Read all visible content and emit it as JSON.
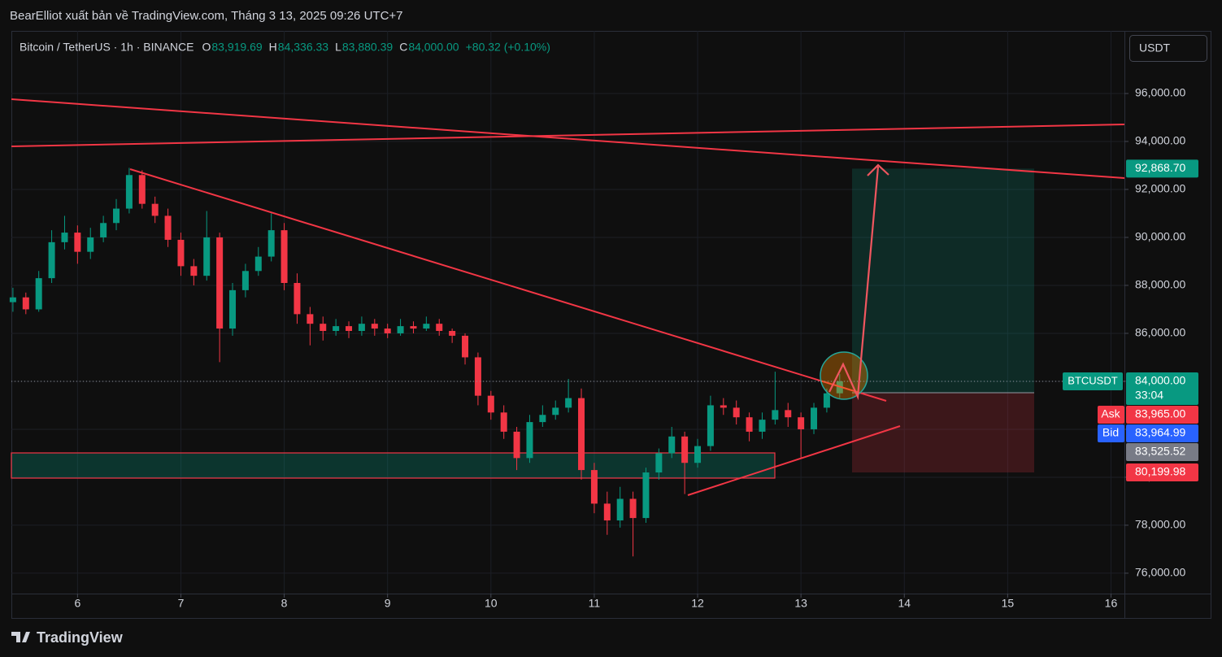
{
  "publisher": "BearElliot xuất bản về TradingView.com, Tháng 3 13, 2025 09:26 UTC+7",
  "symbol": "Bitcoin / TetherUS · 1h · BINANCE",
  "ohlc": [
    {
      "key": "O",
      "value": "83,919.69"
    },
    {
      "key": "H",
      "value": "84,336.33"
    },
    {
      "key": "L",
      "value": "83,880.39"
    },
    {
      "key": "C",
      "value": "84,000.00"
    }
  ],
  "change": "+80.32 (+0.10%)",
  "currency_button": "USDT",
  "footer": "TradingView",
  "chart_data": {
    "type": "candlestick",
    "x": [
      5.375,
      5.5,
      5.625,
      5.75,
      5.875,
      6,
      6.125,
      6.25,
      6.375,
      6.5,
      6.625,
      6.75,
      6.875,
      7,
      7.125,
      7.25,
      7.375,
      7.5,
      7.625,
      7.75,
      7.875,
      8,
      8.125,
      8.25,
      8.375,
      8.5,
      8.625,
      8.75,
      8.875,
      9,
      9.125,
      9.25,
      9.375,
      9.5,
      9.625,
      9.75,
      9.875,
      10,
      10.125,
      10.25,
      10.375,
      10.5,
      10.625,
      10.75,
      10.875,
      11,
      11.125,
      11.25,
      11.375,
      11.5,
      11.625,
      11.75,
      11.875,
      12,
      12.125,
      12.25,
      12.375,
      12.5,
      12.625,
      12.75,
      12.875,
      13,
      13.125,
      13.25,
      13.375
    ],
    "open": [
      87300,
      87500,
      87000,
      88300,
      89800,
      90200,
      89400,
      90000,
      90600,
      91200,
      92600,
      91400,
      90900,
      89900,
      88800,
      88400,
      90000,
      86200,
      87800,
      88600,
      89200,
      90300,
      88100,
      86800,
      86400,
      86100,
      86300,
      86100,
      86400,
      86200,
      86000,
      86300,
      86200,
      86400,
      86100,
      85900,
      85000,
      83400,
      82700,
      81900,
      80800,
      82300,
      82600,
      82900,
      83300,
      80300,
      78900,
      78200,
      79100,
      78300,
      80200,
      81000,
      81700,
      80600,
      81300,
      83000,
      82900,
      82500,
      81900,
      82400,
      82800,
      82500,
      82000,
      82900,
      83500
    ],
    "high": [
      87900,
      87700,
      88600,
      90300,
      90900,
      90500,
      90400,
      90900,
      91600,
      92900,
      92800,
      91700,
      91200,
      90200,
      89100,
      91100,
      90200,
      88100,
      88900,
      89600,
      91000,
      90600,
      88500,
      87100,
      86700,
      86600,
      86500,
      86700,
      86600,
      86400,
      86600,
      86500,
      86700,
      86600,
      86200,
      86000,
      85200,
      83600,
      83000,
      82100,
      82600,
      83000,
      83200,
      84100,
      83700,
      80600,
      79400,
      79600,
      79400,
      80400,
      81200,
      82100,
      81900,
      81600,
      83400,
      83300,
      83200,
      82700,
      82700,
      84400,
      83100,
      82700,
      83100,
      83700,
      84300
    ],
    "low": [
      86900,
      86800,
      86900,
      88100,
      89500,
      88900,
      89100,
      89800,
      90300,
      91000,
      91200,
      90600,
      89600,
      88400,
      88000,
      88200,
      84800,
      85900,
      87500,
      88400,
      89000,
      87800,
      86400,
      85500,
      85700,
      85900,
      85800,
      85900,
      85900,
      85800,
      85900,
      86000,
      86100,
      85900,
      85600,
      84700,
      83000,
      82400,
      81600,
      80300,
      80600,
      82100,
      82400,
      82700,
      79900,
      78500,
      77600,
      77900,
      76700,
      78100,
      79900,
      80800,
      79300,
      80400,
      81100,
      82600,
      82200,
      81500,
      81600,
      82200,
      82100,
      80800,
      81800,
      82700,
      83300
    ],
    "close": [
      87500,
      87000,
      88300,
      89800,
      90200,
      89400,
      90000,
      90600,
      91200,
      92600,
      91400,
      90900,
      89900,
      88800,
      88400,
      90000,
      86200,
      87800,
      88600,
      89200,
      90300,
      88100,
      86800,
      86400,
      86100,
      86300,
      86100,
      86400,
      86200,
      86000,
      86300,
      86200,
      86400,
      86100,
      85900,
      85000,
      83400,
      82700,
      81900,
      80800,
      82300,
      82600,
      82900,
      83300,
      80300,
      78900,
      78200,
      79100,
      78300,
      80200,
      81000,
      81700,
      80600,
      81300,
      83000,
      82900,
      82500,
      81900,
      82400,
      82800,
      82500,
      82000,
      82900,
      83500,
      84000
    ],
    "up_color": "#089981",
    "down_color": "#f23645",
    "xlim": [
      5.36,
      16.13
    ],
    "xticks": [
      6,
      7,
      8,
      9,
      10,
      11,
      12,
      13,
      14,
      15,
      16
    ],
    "ylim": [
      75150,
      98610
    ],
    "yticks": [
      {
        "value": 76000,
        "label": "76,000.00"
      },
      {
        "value": 78000,
        "label": "78,000.00"
      },
      {
        "value": 80000,
        "label": "80,000.00"
      },
      {
        "value": 82000,
        "label": "82,000.00"
      },
      {
        "value": 84000,
        "label": "84,000.00"
      },
      {
        "value": 86000,
        "label": "86,000.00"
      },
      {
        "value": 88000,
        "label": "88,000.00"
      },
      {
        "value": 90000,
        "label": "90,000.00"
      },
      {
        "value": 92000,
        "label": "92,000.00"
      },
      {
        "value": 94000,
        "label": "94,000.00"
      },
      {
        "value": 96000,
        "label": "96,000.00"
      }
    ],
    "grid": true,
    "symbol_tag": "BTCUSDT",
    "price_labels": [
      {
        "value": 92868.7,
        "label": "92,868.70",
        "color": "#089981"
      },
      {
        "value": 84000.0,
        "label": "84,000.00",
        "sublabel": "33:04",
        "color": "#089981"
      },
      {
        "value": 83965.0,
        "label": "83,965.00",
        "tag": "Ask",
        "color": "#f23645"
      },
      {
        "value": 83964.99,
        "label": "83,964.99",
        "tag": "Bid",
        "color": "#2962ff"
      },
      {
        "value": 83525.52,
        "label": "83,525.52",
        "color": "#787b86"
      },
      {
        "value": 80199.98,
        "label": "80,199.98",
        "color": "#f23645"
      }
    ]
  }
}
